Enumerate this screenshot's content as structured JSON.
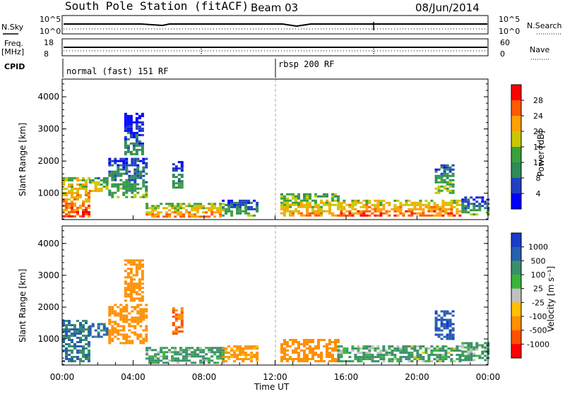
{
  "header": {
    "title": "South Pole Station (fitACF)",
    "beam": "Beam 03",
    "date": "08/Jun/2014"
  },
  "aux": {
    "nsky_label": "N.Sky",
    "nsearch_label": "N.Search",
    "freq_label_1": "Freq.",
    "freq_label_2": "[MHz]",
    "nave_label": "Nave",
    "cpid_label": "CPID",
    "nsky_ticks": [
      "10^5",
      "10^0"
    ],
    "nsearch_ticks": [
      "10^5",
      "10^0"
    ],
    "freq_ticks": [
      "18",
      "8"
    ],
    "nave_ticks": [
      "60",
      "0"
    ],
    "cpid_segments": [
      {
        "start": 0,
        "end": 12,
        "label": "normal (fast) 151 RF"
      },
      {
        "start": 12,
        "end": 24,
        "label": "rbsp 200 RF"
      }
    ]
  },
  "power_panel": {
    "ylabel": "Slant Range [km]",
    "yticks": [
      "4000",
      "3000",
      "2000",
      "1000"
    ],
    "colorbar_label": "Power [dB]",
    "colorbar_ticks": [
      "28",
      "24",
      "20",
      "16",
      "12",
      "8",
      "4"
    ],
    "colorbar_colors": [
      "#ff0000",
      "#ff5a00",
      "#ffa000",
      "#c8c800",
      "#3aa03a",
      "#2e8b57",
      "#2040c0",
      "#0000ff"
    ]
  },
  "velocity_panel": {
    "ylabel": "Slant Range [km]",
    "yticks": [
      "4000",
      "3000",
      "2000",
      "1000"
    ],
    "colorbar_label": "Velocity [m s⁻¹]",
    "colorbar_ticks": [
      "1000",
      "500",
      "100",
      "25",
      "-25",
      "-100",
      "-500",
      "-1000"
    ],
    "colorbar_colors": [
      "#1a3cc8",
      "#2860b0",
      "#3a8f6a",
      "#3ab43a",
      "#c0c0c0",
      "#ffc000",
      "#ff9000",
      "#ff5000",
      "#ff0000"
    ]
  },
  "xaxis": {
    "label": "Time UT",
    "ticks": [
      "00:00",
      "04:00",
      "08:00",
      "12:00",
      "16:00",
      "20:00",
      "00:00"
    ]
  },
  "chart_data": [
    {
      "type": "heatmap",
      "title": "South Pole Station (fitACF) Beam 03 08/Jun/2014",
      "quantity": "Power [dB]",
      "xlabel": "Time UT",
      "ylabel": "Slant Range [km]",
      "xlim_hours": [
        0,
        24
      ],
      "ylim_km": [
        180,
        4550
      ],
      "color_range": [
        0,
        30
      ],
      "regions": [
        {
          "t0": 0.0,
          "t1": 1.5,
          "r0": 300,
          "r1": 1500,
          "power_db": 26
        },
        {
          "t0": 1.5,
          "t1": 2.6,
          "r0": 1100,
          "r1": 1500,
          "power_db": 20
        },
        {
          "t0": 2.6,
          "t1": 4.7,
          "r0": 900,
          "r1": 2100,
          "power_db": 14
        },
        {
          "t0": 3.5,
          "t1": 4.5,
          "r0": 2200,
          "r1": 3500,
          "power_db": 10
        },
        {
          "t0": 4.7,
          "t1": 9.0,
          "r0": 250,
          "r1": 700,
          "power_db": 24
        },
        {
          "t0": 6.2,
          "t1": 6.7,
          "r0": 1200,
          "r1": 2000,
          "power_db": 12
        },
        {
          "t0": 9.0,
          "t1": 11.0,
          "r0": 300,
          "r1": 800,
          "power_db": 14
        },
        {
          "t0": 12.3,
          "t1": 15.5,
          "r0": 300,
          "r1": 1000,
          "power_db": 22
        },
        {
          "t0": 15.5,
          "t1": 22.5,
          "r0": 300,
          "r1": 800,
          "power_db": 26
        },
        {
          "t0": 21.0,
          "t1": 22.0,
          "r0": 1000,
          "r1": 1900,
          "power_db": 16
        },
        {
          "t0": 22.5,
          "t1": 24.0,
          "r0": 350,
          "r1": 900,
          "power_db": 14
        }
      ]
    },
    {
      "type": "heatmap",
      "quantity": "Velocity [m s⁻¹]",
      "xlabel": "Time UT",
      "ylabel": "Slant Range [km]",
      "xlim_hours": [
        0,
        24
      ],
      "ylim_km": [
        180,
        4550
      ],
      "color_range": [
        -1000,
        1000
      ],
      "regions": [
        {
          "t0": 0.0,
          "t1": 1.5,
          "r0": 300,
          "r1": 1600,
          "velocity": 500
        },
        {
          "t0": 1.5,
          "t1": 2.6,
          "r0": 1100,
          "r1": 1500,
          "velocity": 600
        },
        {
          "t0": 2.6,
          "t1": 4.7,
          "r0": 900,
          "r1": 2100,
          "velocity": -300
        },
        {
          "t0": 3.5,
          "t1": 4.5,
          "r0": 2200,
          "r1": 3500,
          "velocity": -300
        },
        {
          "t0": 4.7,
          "t1": 9.0,
          "r0": 250,
          "r1": 750,
          "velocity": 150
        },
        {
          "t0": 6.2,
          "t1": 6.7,
          "r0": 1200,
          "r1": 2000,
          "velocity": -500
        },
        {
          "t0": 9.0,
          "t1": 11.0,
          "r0": 300,
          "r1": 800,
          "velocity": -200
        },
        {
          "t0": 12.3,
          "t1": 15.5,
          "r0": 300,
          "r1": 1000,
          "velocity": -300
        },
        {
          "t0": 15.5,
          "t1": 22.5,
          "r0": 300,
          "r1": 800,
          "velocity": 120
        },
        {
          "t0": 21.0,
          "t1": 22.0,
          "r0": 1000,
          "r1": 1900,
          "velocity": 900
        },
        {
          "t0": 22.5,
          "t1": 24.0,
          "r0": 350,
          "r1": 900,
          "velocity": 150
        }
      ]
    }
  ]
}
